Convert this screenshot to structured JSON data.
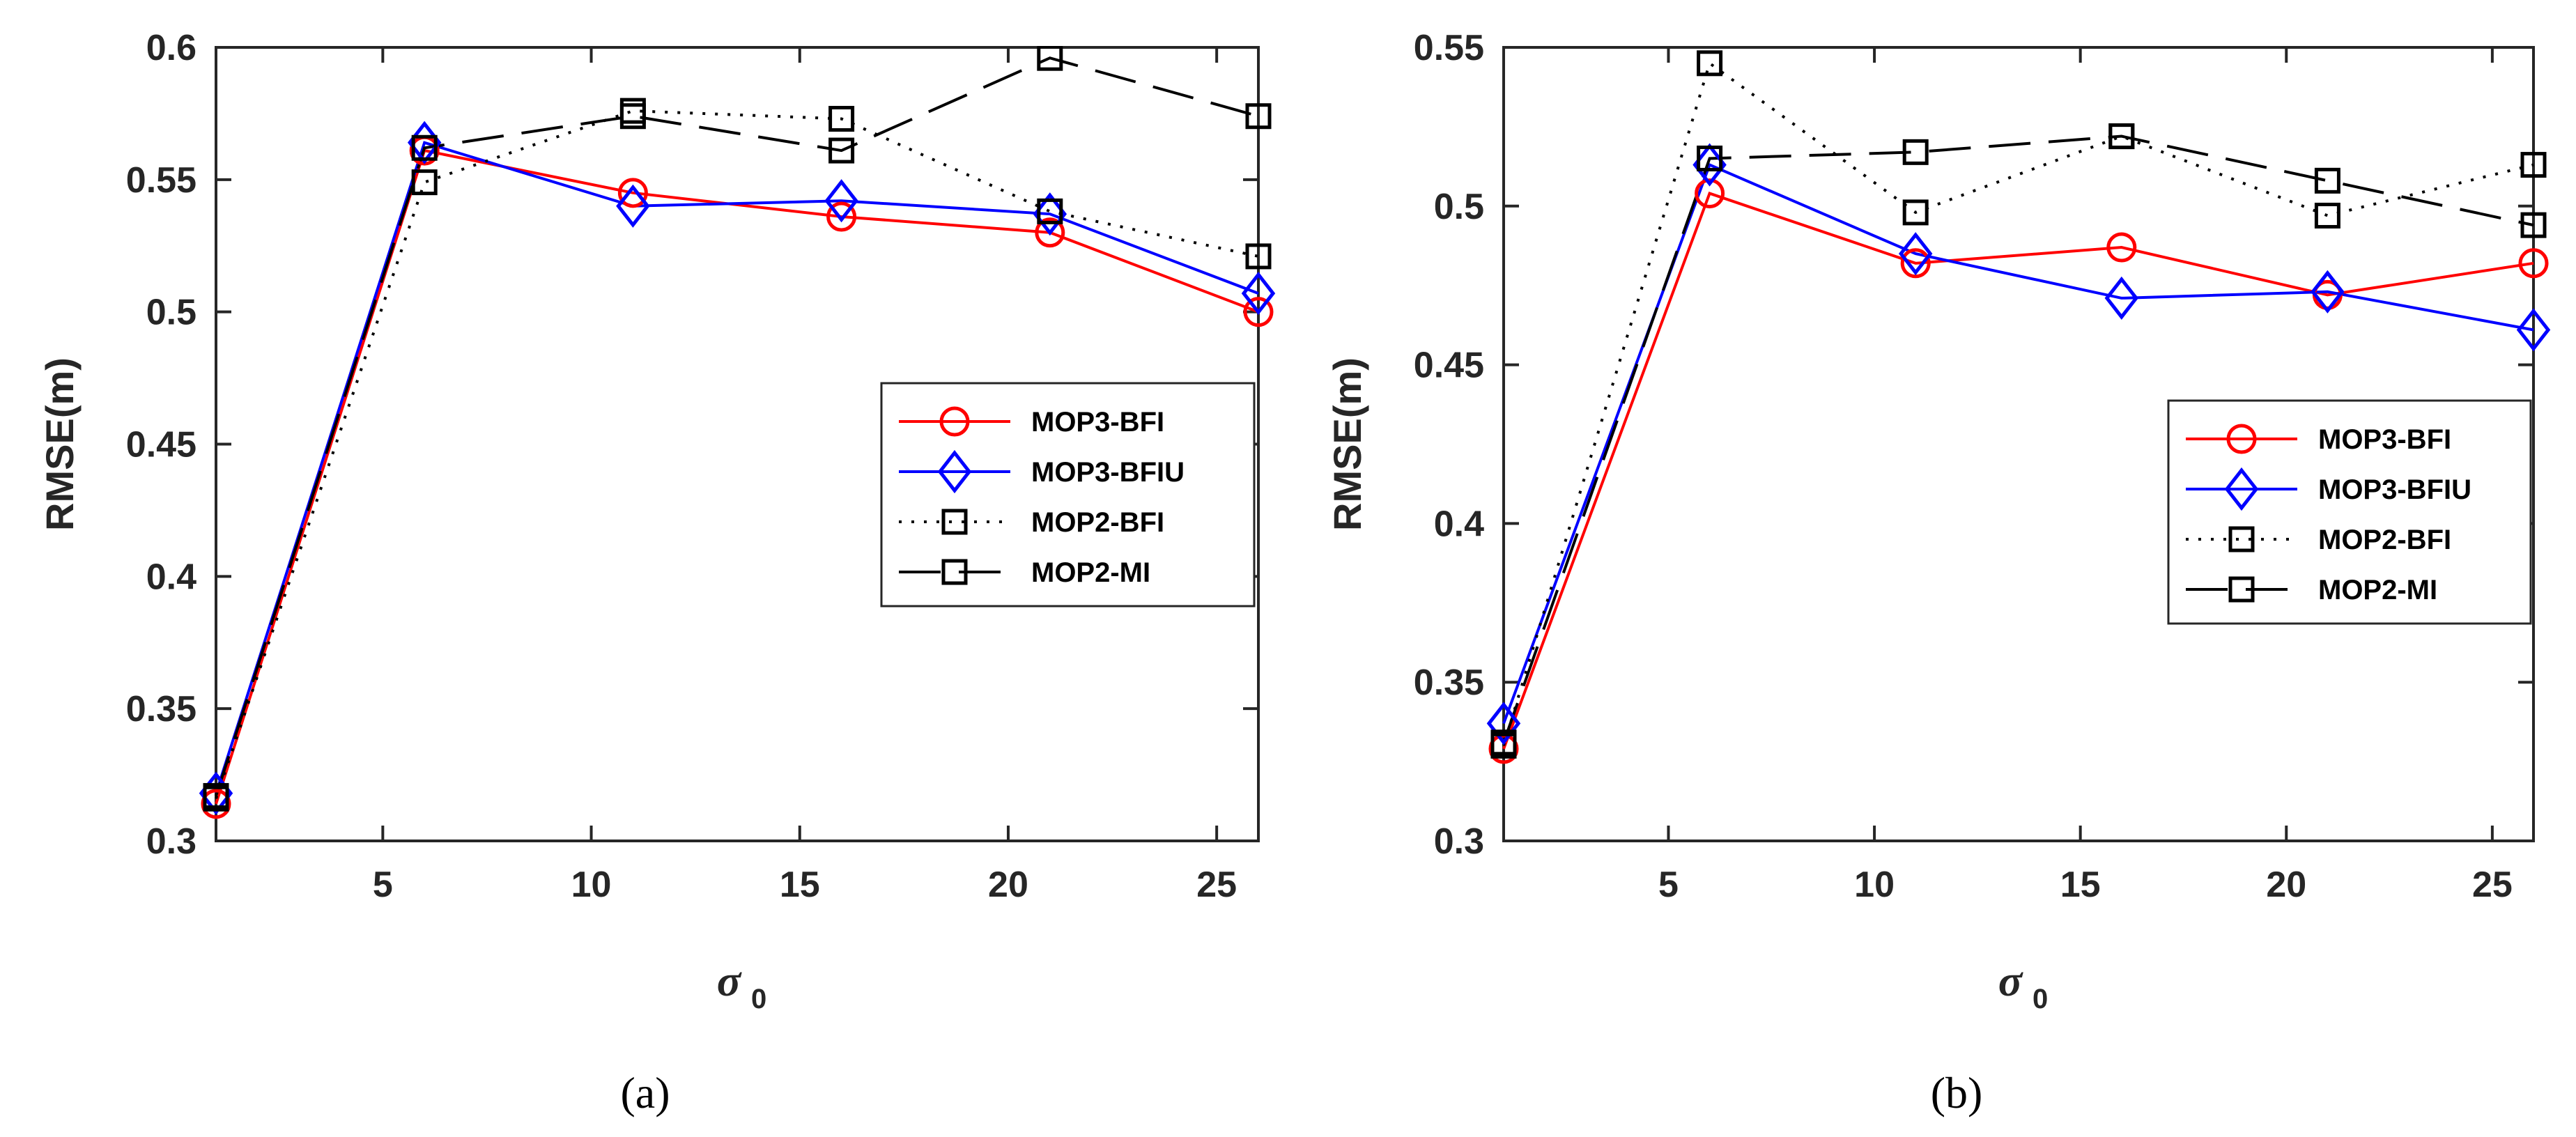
{
  "chart_data": [
    {
      "type": "line",
      "title": "",
      "caption": "(a)",
      "xlabel": "σ",
      "xlabel_subscript": "0",
      "ylabel": "RMSE(m)",
      "xlim": [
        1,
        26
      ],
      "ylim": [
        0.3,
        0.6
      ],
      "xticks": [
        5,
        10,
        15,
        20,
        25
      ],
      "yticks": [
        0.3,
        0.35,
        0.4,
        0.45,
        0.5,
        0.55,
        0.6
      ],
      "ytick_labels": [
        "0.3",
        "0.35",
        "0.4",
        "0.45",
        "0.5",
        "0.55",
        "0.6"
      ],
      "legend_position": "center-right",
      "x": [
        1,
        6,
        11,
        16,
        21,
        26
      ],
      "series": [
        {
          "name": "MOP3-BFI",
          "color": "#ff0000",
          "line": "solid",
          "marker": "circle",
          "values": [
            0.314,
            0.561,
            0.545,
            0.536,
            0.53,
            0.5
          ]
        },
        {
          "name": "MOP3-BFIU",
          "color": "#0000ff",
          "line": "solid",
          "marker": "diamond",
          "values": [
            0.318,
            0.564,
            0.54,
            0.542,
            0.537,
            0.507
          ]
        },
        {
          "name": "MOP2-BFI",
          "color": "#000000",
          "line": "dotted",
          "marker": "square",
          "values": [
            0.316,
            0.549,
            0.576,
            0.573,
            0.538,
            0.521
          ]
        },
        {
          "name": "MOP2-MI",
          "color": "#000000",
          "line": "dashed",
          "marker": "square",
          "values": [
            0.317,
            0.562,
            0.574,
            0.561,
            0.596,
            0.574
          ]
        }
      ]
    },
    {
      "type": "line",
      "title": "",
      "caption": "(b)",
      "xlabel": "σ",
      "xlabel_subscript": "0",
      "ylabel": "RMSE(m)",
      "xlim": [
        1,
        26
      ],
      "ylim": [
        0.3,
        0.55
      ],
      "xticks": [
        5,
        10,
        15,
        20,
        25
      ],
      "yticks": [
        0.3,
        0.35,
        0.4,
        0.45,
        0.5,
        0.55
      ],
      "ytick_labels": [
        "0.3",
        "0.35",
        "0.4",
        "0.45",
        "0.5",
        "0.55"
      ],
      "legend_position": "center-right",
      "x": [
        1,
        6,
        11,
        16,
        21,
        26
      ],
      "series": [
        {
          "name": "MOP3-BFI",
          "color": "#ff0000",
          "line": "solid",
          "marker": "circle",
          "values": [
            0.329,
            0.504,
            0.482,
            0.487,
            0.472,
            0.482
          ]
        },
        {
          "name": "MOP3-BFIU",
          "color": "#0000ff",
          "line": "solid",
          "marker": "diamond",
          "values": [
            0.337,
            0.513,
            0.485,
            0.471,
            0.473,
            0.461
          ]
        },
        {
          "name": "MOP2-BFI",
          "color": "#000000",
          "line": "dotted",
          "marker": "square",
          "values": [
            0.33,
            0.545,
            0.498,
            0.522,
            0.497,
            0.513
          ]
        },
        {
          "name": "MOP2-MI",
          "color": "#000000",
          "line": "dashed",
          "marker": "square",
          "values": [
            0.331,
            0.515,
            0.517,
            0.522,
            0.508,
            0.494
          ]
        }
      ]
    }
  ]
}
